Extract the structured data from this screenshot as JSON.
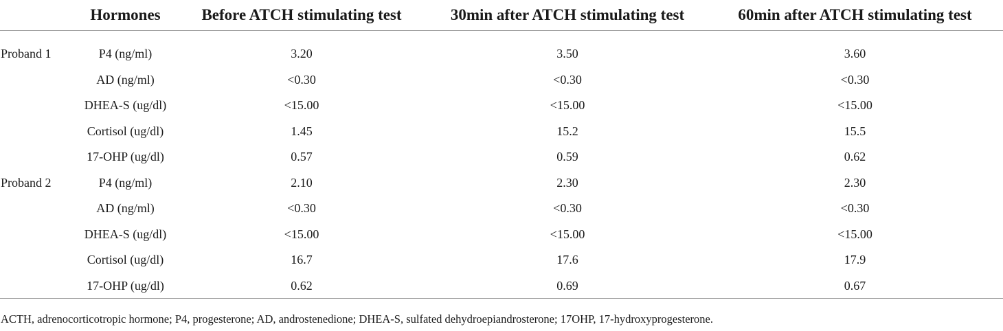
{
  "table": {
    "headers": [
      "",
      "Hormones",
      "Before ATCH stimulating test",
      "30min after ATCH stimulating test",
      "60min after ATCH stimulating test"
    ],
    "rows": [
      [
        "Proband 1",
        "P4 (ng/ml)",
        "3.20",
        "3.50",
        "3.60"
      ],
      [
        "",
        "AD (ng/ml)",
        "<0.30",
        "<0.30",
        "<0.30"
      ],
      [
        "",
        "DHEA-S (ug/dl)",
        "<15.00",
        "<15.00",
        "<15.00"
      ],
      [
        "",
        "Cortisol (ug/dl)",
        "1.45",
        "15.2",
        "15.5"
      ],
      [
        "",
        "17-OHP (ug/dl)",
        "0.57",
        "0.59",
        "0.62"
      ],
      [
        "Proband 2",
        "P4 (ng/ml)",
        "2.10",
        "2.30",
        "2.30"
      ],
      [
        "",
        "AD (ng/ml)",
        "<0.30",
        "<0.30",
        "<0.30"
      ],
      [
        "",
        "DHEA-S (ug/dl)",
        "<15.00",
        "<15.00",
        "<15.00"
      ],
      [
        "",
        "Cortisol (ug/dl)",
        "16.7",
        "17.6",
        "17.9"
      ],
      [
        "",
        "17-OHP (ug/dl)",
        "0.62",
        "0.69",
        "0.67"
      ]
    ]
  },
  "footnote": "ACTH, adrenocorticotropic hormone; P4, progesterone; AD, androstenedione; DHEA-S, sulfated dehydroepiandrosterone; 17OHP, 17-hydroxyprogesterone."
}
